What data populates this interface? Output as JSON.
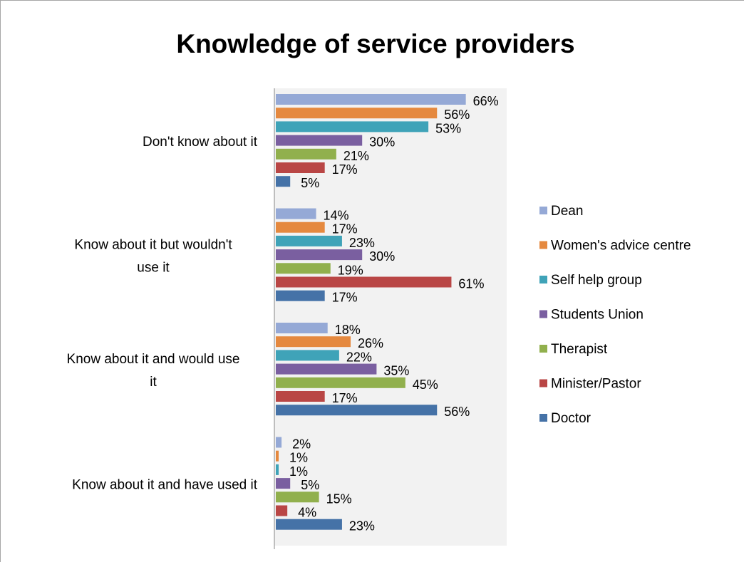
{
  "chart_data": {
    "type": "bar",
    "orientation": "horizontal",
    "title": "Knowledge of service providers",
    "xlabel": "",
    "ylabel": "",
    "xlim": [
      0,
      80
    ],
    "grid": false,
    "legend": "right",
    "categories": [
      "Don't know about it",
      "Know about it but wouldn't use it",
      "Know about it and would use it",
      "Know about it and have used it"
    ],
    "series": [
      {
        "name": "Dean",
        "color": "#95a9d6",
        "values": [
          66,
          14,
          18,
          2
        ],
        "labels": [
          "66%",
          "14%",
          "18%",
          "2%"
        ]
      },
      {
        "name": "Women's advice centre",
        "color": "#e5893f",
        "values": [
          56,
          17,
          26,
          1
        ],
        "labels": [
          "56%",
          "17%",
          "26%",
          "1%"
        ]
      },
      {
        "name": "Self help group",
        "color": "#3fa3b8",
        "values": [
          53,
          23,
          22,
          1
        ],
        "labels": [
          "53%",
          "23%",
          "22%",
          "1%"
        ]
      },
      {
        "name": "Students Union",
        "color": "#7a5fa0",
        "values": [
          30,
          30,
          35,
          5
        ],
        "labels": [
          "30%",
          "30%",
          "35%",
          "5%"
        ]
      },
      {
        "name": "Therapist",
        "color": "#91b04d",
        "values": [
          21,
          19,
          45,
          15
        ],
        "labels": [
          "21%",
          "19%",
          "45%",
          "15%"
        ]
      },
      {
        "name": "Minister/Pastor",
        "color": "#b94645",
        "values": [
          17,
          61,
          17,
          4
        ],
        "labels": [
          "17%",
          "61%",
          "17%",
          "4%"
        ]
      },
      {
        "name": "Doctor",
        "color": "#4572a7",
        "values": [
          5,
          17,
          56,
          23
        ],
        "labels": [
          "5%",
          "17%",
          "56%",
          "23%"
        ]
      }
    ]
  }
}
